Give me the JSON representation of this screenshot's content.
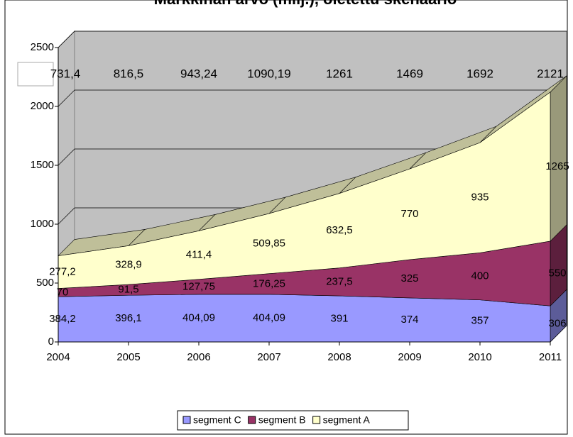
{
  "chart_data": {
    "type": "stacked-area-3d",
    "title": "Markkinan arvo (milj.), oletettu skenaario",
    "categories": [
      "2004",
      "2005",
      "2006",
      "2007",
      "2008",
      "2009",
      "2010",
      "2011"
    ],
    "series": [
      {
        "name": "segment C",
        "color": "#9999ff",
        "values": [
          384.2,
          396.1,
          404.09,
          404.09,
          391,
          374,
          357,
          306
        ],
        "value_labels": [
          "384,2",
          "396,1",
          "404,09",
          "404,09",
          "391",
          "374",
          "357",
          "306"
        ]
      },
      {
        "name": "segment B",
        "color": "#993366",
        "values": [
          70,
          91.5,
          127.75,
          176.25,
          237.5,
          325,
          400,
          550
        ],
        "value_labels": [
          "70",
          "91,5",
          "127,75",
          "176,25",
          "237,5",
          "325",
          "400",
          "550"
        ]
      },
      {
        "name": "segment A",
        "color": "#ffffcc",
        "values": [
          277.2,
          328.9,
          411.4,
          509.85,
          632.5,
          770,
          935,
          1265
        ],
        "value_labels": [
          "277,2",
          "328,9",
          "411,4",
          "509,85",
          "632,5",
          "770",
          "935",
          "1265"
        ]
      }
    ],
    "totals": {
      "values": [
        731.4,
        816.5,
        943.24,
        1090.19,
        1261,
        1469,
        1692,
        2121
      ],
      "value_labels": [
        "731,4",
        "816,5",
        "943,24",
        "1090,19",
        "1261",
        "1469",
        "1692",
        "2121"
      ]
    },
    "ylim": [
      0,
      2500
    ],
    "yticks": [
      0,
      500,
      1000,
      1500,
      2000,
      2500
    ],
    "grid": true,
    "legend": "bottom"
  }
}
